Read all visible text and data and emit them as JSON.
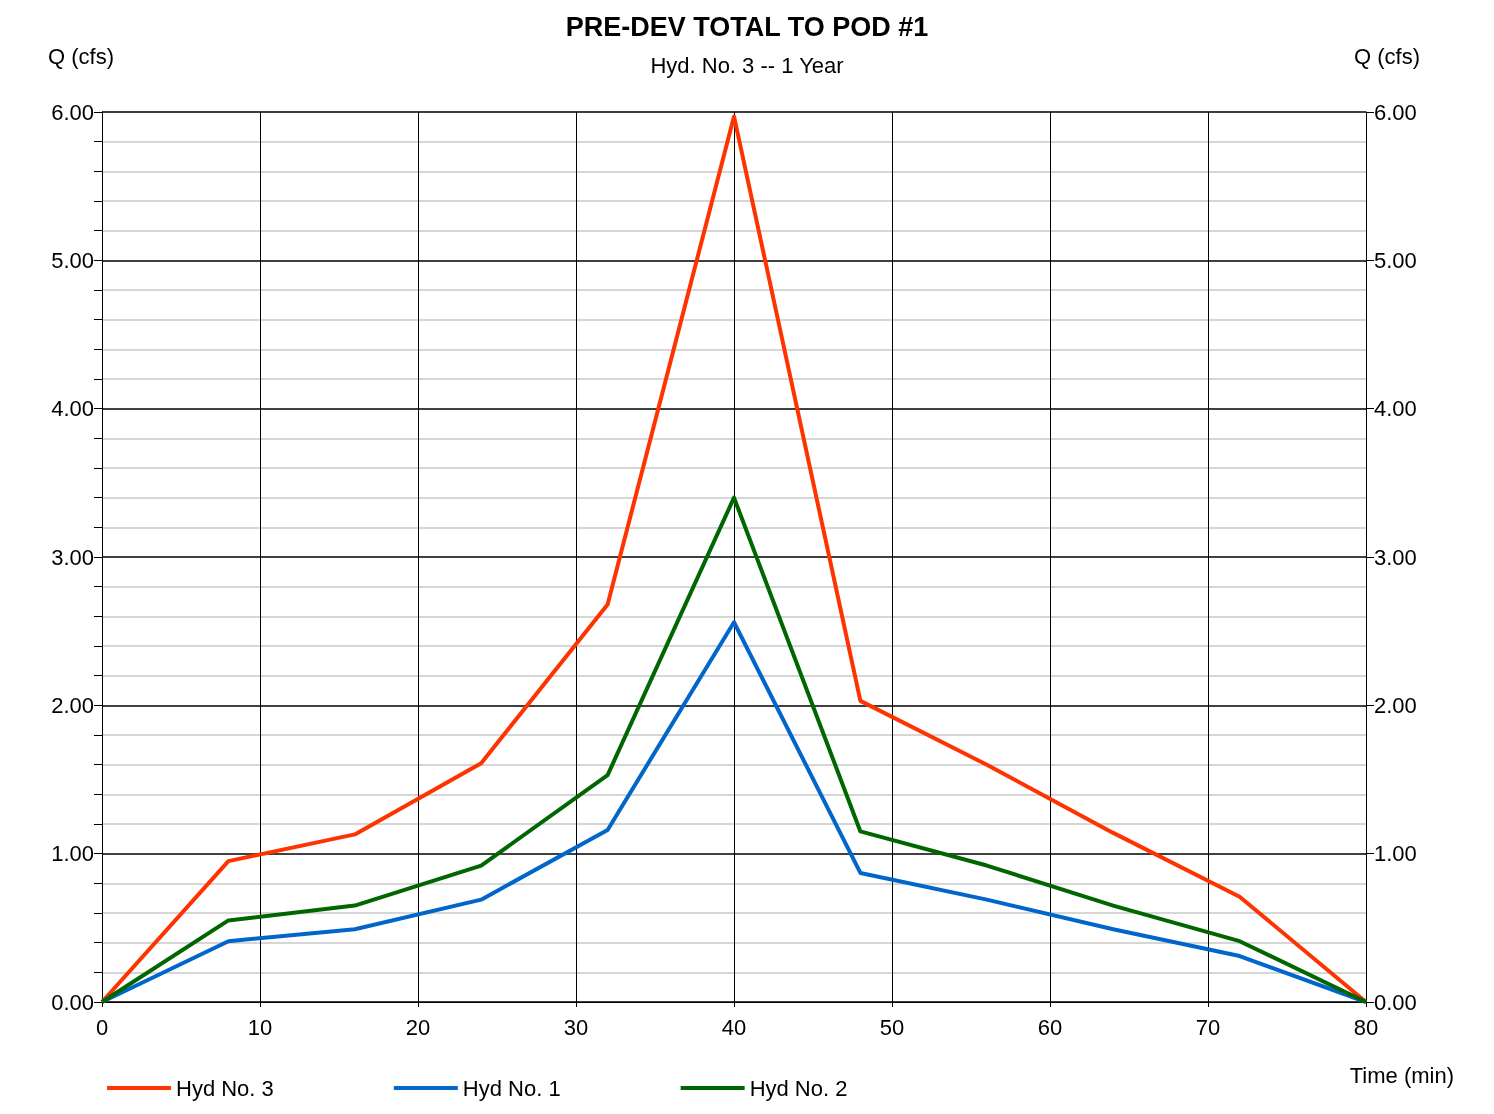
{
  "chart_data": {
    "type": "line",
    "title": "PRE-DEV TOTAL TO POD #1",
    "subtitle": "Hyd. No. 3 -- 1 Year",
    "xlabel": "Time (min)",
    "ylabel": "Q (cfs)",
    "y2label": "Q (cfs)",
    "x": [
      0,
      8,
      16,
      24,
      32,
      40,
      48,
      56,
      64,
      72,
      80
    ],
    "series": [
      {
        "name": "Hyd No. 3",
        "color": "#ff3300",
        "values": [
          0,
          0.95,
          1.13,
          1.61,
          2.68,
          5.97,
          2.03,
          1.6,
          1.14,
          0.71,
          0
        ]
      },
      {
        "name": "Hyd No. 1",
        "color": "#0066cc",
        "values": [
          0,
          0.41,
          0.49,
          0.69,
          1.16,
          2.56,
          0.87,
          0.69,
          0.49,
          0.31,
          0
        ]
      },
      {
        "name": "Hyd No. 2",
        "color": "#006600",
        "values": [
          0,
          0.55,
          0.65,
          0.92,
          1.53,
          3.4,
          1.15,
          0.92,
          0.65,
          0.41,
          0
        ]
      }
    ],
    "xlim": [
      0,
      80
    ],
    "xticks": [
      0,
      10,
      20,
      30,
      40,
      50,
      60,
      70,
      80
    ],
    "ylim": [
      0,
      6
    ],
    "yticks": [
      {
        "value": 0,
        "label": "0.00"
      },
      {
        "value": 0.2,
        "label": null
      },
      {
        "value": 0.4,
        "label": null
      },
      {
        "value": 0.6,
        "label": null
      },
      {
        "value": 0.8,
        "label": null
      },
      {
        "value": 1,
        "label": "1.00"
      },
      {
        "value": 1.2,
        "label": null
      },
      {
        "value": 1.4,
        "label": null
      },
      {
        "value": 1.6,
        "label": null
      },
      {
        "value": 1.8,
        "label": null
      },
      {
        "value": 2,
        "label": "2.00"
      },
      {
        "value": 2.2,
        "label": null
      },
      {
        "value": 2.4,
        "label": null
      },
      {
        "value": 2.6,
        "label": null
      },
      {
        "value": 2.8,
        "label": null
      },
      {
        "value": 3,
        "label": "3.00"
      },
      {
        "value": 3.2,
        "label": null
      },
      {
        "value": 3.4,
        "label": null
      },
      {
        "value": 3.6,
        "label": null
      },
      {
        "value": 3.8,
        "label": null
      },
      {
        "value": 4,
        "label": "4.00"
      },
      {
        "value": 4.2,
        "label": null
      },
      {
        "value": 4.4,
        "label": null
      },
      {
        "value": 4.6,
        "label": null
      },
      {
        "value": 4.8,
        "label": null
      },
      {
        "value": 5,
        "label": "5.00"
      },
      {
        "value": 5.2,
        "label": null
      },
      {
        "value": 5.4,
        "label": null
      },
      {
        "value": 5.6,
        "label": null
      },
      {
        "value": 5.8,
        "label": null
      },
      {
        "value": 6,
        "label": "6.00"
      }
    ],
    "y2lim": [
      0,
      6
    ],
    "y2ticks": [
      {
        "value": 0,
        "label": "0.00"
      },
      {
        "value": 1,
        "label": "1.00"
      },
      {
        "value": 2,
        "label": "2.00"
      },
      {
        "value": 3,
        "label": "3.00"
      },
      {
        "value": 4,
        "label": "4.00"
      },
      {
        "value": 5,
        "label": "5.00"
      },
      {
        "value": 6,
        "label": "6.00"
      }
    ],
    "grid": true,
    "legend": "bottom",
    "marker": "none",
    "line_style": "solid"
  }
}
